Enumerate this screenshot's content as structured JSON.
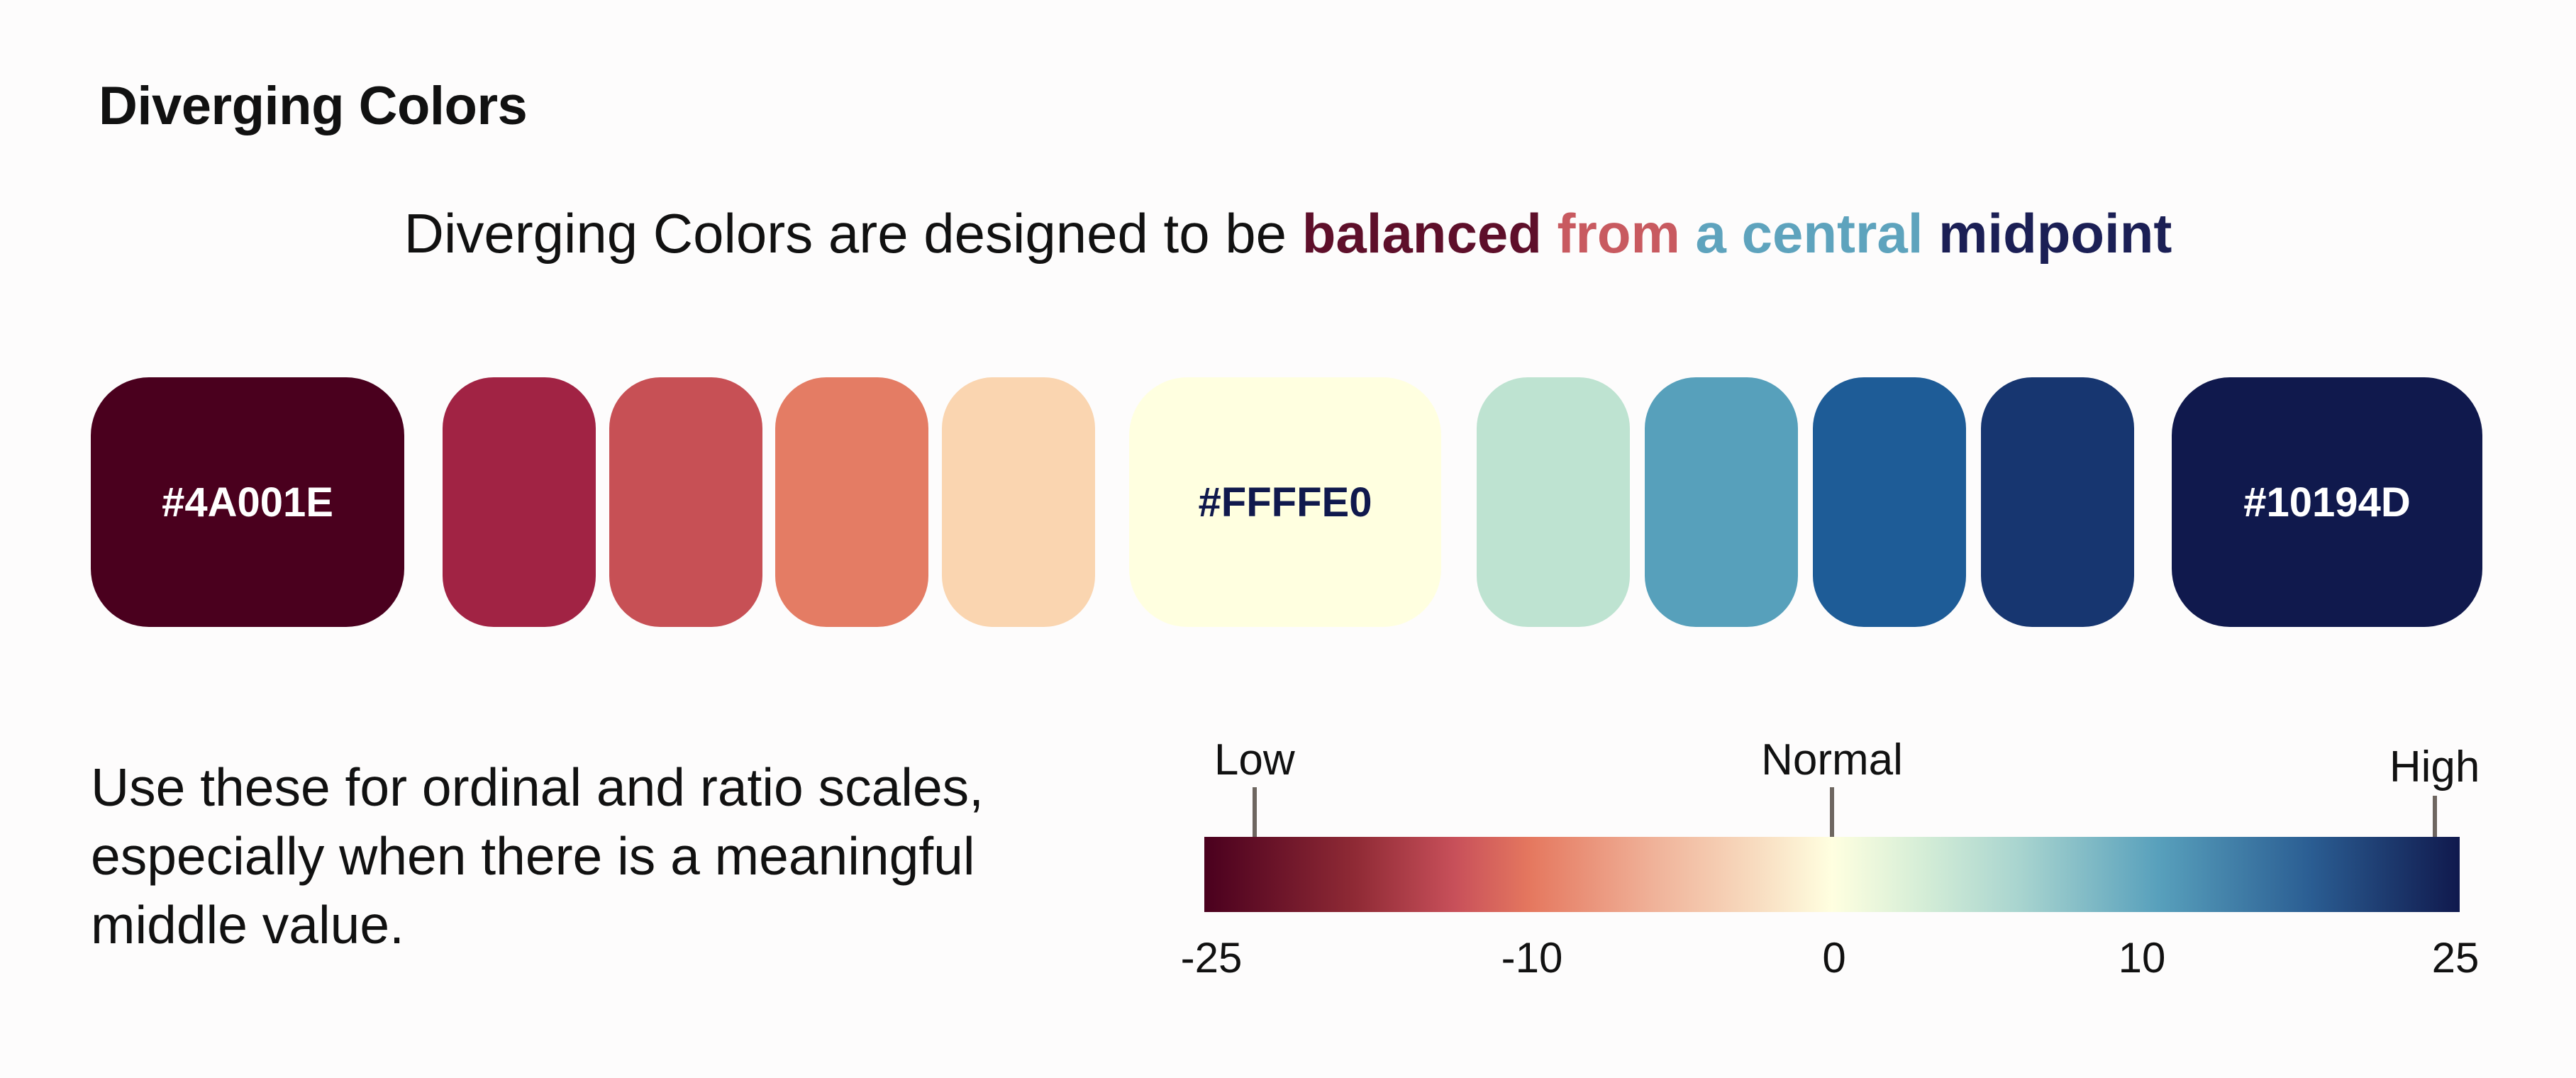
{
  "title": "Diverging Colors",
  "subtitle": {
    "prefix": "Diverging Colors are designed to be ",
    "words": [
      {
        "text": "balanced",
        "color": "#5e0f2a"
      },
      {
        "text": "from",
        "color": "#c85a60"
      },
      {
        "text": "a",
        "color": "#5ea3bd"
      },
      {
        "text": "central",
        "color": "#5ea3bd"
      },
      {
        "text": "midpoint",
        "color": "#1b1f55"
      }
    ]
  },
  "swatches": [
    {
      "color": "#4A001E",
      "label": "#4A001E",
      "text_color": "#ffffff"
    },
    {
      "color": "#A12344",
      "label": ""
    },
    {
      "color": "#C75055",
      "label": ""
    },
    {
      "color": "#E47C64",
      "label": ""
    },
    {
      "color": "#FAD5B0",
      "label": ""
    },
    {
      "color": "#FFFFE0",
      "label": "#FFFFE0",
      "text_color": "#10194D"
    },
    {
      "color": "#BEE3D1",
      "label": ""
    },
    {
      "color": "#57A0BB",
      "label": ""
    },
    {
      "color": "#1E5C97",
      "label": ""
    },
    {
      "color": "#173670",
      "label": ""
    },
    {
      "color": "#10194D",
      "label": "#10194D",
      "text_color": "#ffffff"
    }
  ],
  "note": "Use these for ordinal and ratio scales, especially when there is a meaningful middle value.",
  "scale": {
    "domain": [
      -25,
      25
    ],
    "ticks": [
      "-25",
      "-10",
      "0",
      "10",
      "25"
    ],
    "tick_values": [
      -25,
      -10,
      0,
      10,
      25
    ],
    "markers": [
      {
        "label": "Low",
        "value": -23
      },
      {
        "label": "Normal",
        "value": 0
      },
      {
        "label": "High",
        "value": 24
      }
    ]
  }
}
